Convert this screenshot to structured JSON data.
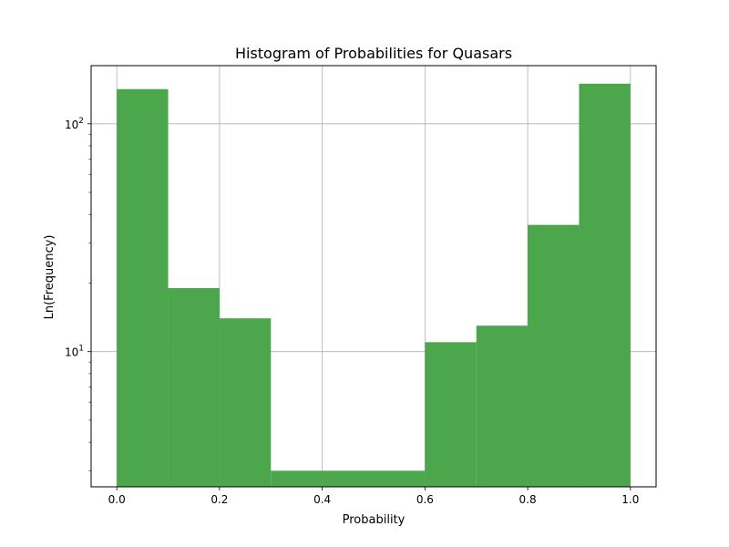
{
  "chart_data": {
    "type": "bar",
    "title": "Histogram of Probabilities for Quasars",
    "xlabel": "Probability",
    "ylabel": "Ln(Frequency)",
    "yscale": "log",
    "grid": true,
    "bar_color": "#4ca64c",
    "grid_color": "#b0b0b0",
    "xlim": [
      -0.05,
      1.05
    ],
    "ylim": [
      2.55,
      180
    ],
    "xticks": [
      {
        "value": 0.0,
        "label": "0.0"
      },
      {
        "value": 0.2,
        "label": "0.2"
      },
      {
        "value": 0.4,
        "label": "0.4"
      },
      {
        "value": 0.6,
        "label": "0.6"
      },
      {
        "value": 0.8,
        "label": "0.8"
      },
      {
        "value": 1.0,
        "label": "1.0"
      }
    ],
    "yticks": [
      {
        "value": 10,
        "base": "10",
        "exp": "1"
      },
      {
        "value": 100,
        "base": "10",
        "exp": "2"
      }
    ],
    "bins": [
      {
        "x0": 0.0,
        "x1": 0.1,
        "value": 142
      },
      {
        "x0": 0.1,
        "x1": 0.2,
        "value": 19
      },
      {
        "x0": 0.2,
        "x1": 0.3,
        "value": 14
      },
      {
        "x0": 0.3,
        "x1": 0.4,
        "value": 3
      },
      {
        "x0": 0.4,
        "x1": 0.5,
        "value": 3
      },
      {
        "x0": 0.5,
        "x1": 0.6,
        "value": 3
      },
      {
        "x0": 0.6,
        "x1": 0.7,
        "value": 11
      },
      {
        "x0": 0.7,
        "x1": 0.8,
        "value": 13
      },
      {
        "x0": 0.8,
        "x1": 0.9,
        "value": 36
      },
      {
        "x0": 0.9,
        "x1": 1.0,
        "value": 150
      }
    ]
  }
}
